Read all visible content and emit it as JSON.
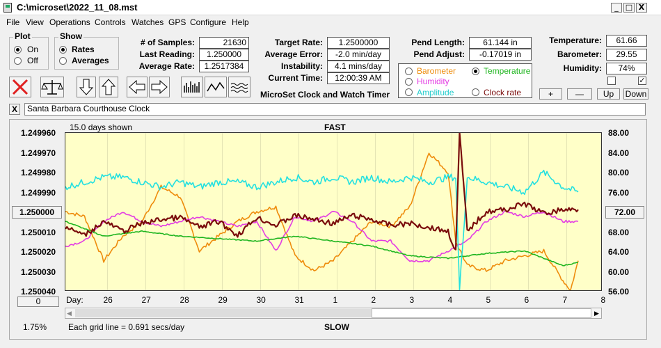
{
  "window": {
    "title": "C:\\microset\\2022_11_08.mst",
    "minimize": "_",
    "maximize": "□",
    "close": "X"
  },
  "menu": [
    "File",
    "View",
    "Operations",
    "Controls",
    "Watches",
    "GPS",
    "Configure",
    "Help"
  ],
  "plot_group": {
    "title": "Plot",
    "options": [
      "On",
      "Off"
    ],
    "selected": "On"
  },
  "show_group": {
    "title": "Show",
    "options": [
      "Rates",
      "Averages"
    ],
    "selected": "Rates"
  },
  "stats": {
    "samples_label": "# of Samples:",
    "samples": "21630",
    "last_label": "Last Reading:",
    "last": "1.250000",
    "avg_label": "Average Rate:",
    "avg": "1.2517384"
  },
  "rates": {
    "target_label": "Target Rate:",
    "target": "1.2500000",
    "avgerr_label": "Average Error:",
    "avgerr": "-2.0 min/day",
    "instab_label": "Instability:",
    "instab": "4.1 mins/day",
    "time_label": "Current Time:",
    "time": "12:00:39 AM"
  },
  "pend": {
    "length_label": "Pend Length:",
    "length": "61.144 in",
    "adjust_label": "Pend Adjust:",
    "adjust": "-0.17019 in"
  },
  "env": {
    "temp_label": "Temperature:",
    "temp": "61.66",
    "baro_label": "Barometer:",
    "baro": "29.55",
    "hum_label": "Humidity:",
    "hum": "74%",
    "check2": "✓"
  },
  "overlay_options": {
    "barometer": "Barometer",
    "temperature": "Temperature",
    "humidity": "Humidity",
    "amplitude": "Amplitude",
    "clock_rate": "Clock rate",
    "selected": "Temperature"
  },
  "adjust_buttons": [
    "+",
    "—",
    "Up",
    "Down"
  ],
  "subtitle": "MicroSet Clock and Watch Timer",
  "clock_name": "Santa Barbara Courthouse Clock",
  "clear_label": "X",
  "chart_header": {
    "days_shown": "15.0 days shown",
    "fast": "FAST",
    "slow": "SLOW",
    "grid_note": "Each grid line = 0.691 secs/day"
  },
  "left_box": "1.250000",
  "right_box": "72.00",
  "zero_button": "0",
  "percent": "1.75%",
  "day_label": "Day:",
  "colors": {
    "barometer": "#ee8c0c",
    "temperature": "#1fb51f",
    "humidity": "#e33be3",
    "amplitude": "#22e0e0",
    "clock_rate": "#7a0c0c",
    "plot_bg": "#ffffc8"
  },
  "chart_data": {
    "type": "line",
    "x_label": "Day",
    "x_ticks": [
      "26",
      "27",
      "28",
      "29",
      "30",
      "31",
      "1",
      "2",
      "3",
      "4",
      "5",
      "6",
      "7",
      "8"
    ],
    "y_left_ticks": [
      "1.249960",
      "1.249970",
      "1.249980",
      "1.249990",
      "1.250000",
      "1.250010",
      "1.250020",
      "1.250030",
      "1.250040"
    ],
    "y_right_ticks": [
      "88.00",
      "84.00",
      "80.00",
      "76.00",
      "72.00",
      "68.00",
      "64.00",
      "60.00",
      "56.00"
    ],
    "y_left_range": [
      1.24996,
      1.25004
    ],
    "y_right_range": [
      56,
      88
    ],
    "series": [
      {
        "name": "Clock rate",
        "color": "#7a0c0c",
        "axis": "left",
        "x": [
          0,
          0.5,
          1,
          1.5,
          2,
          2.5,
          3,
          3.5,
          4,
          4.5,
          5,
          5.5,
          6,
          6.5,
          7,
          7.5,
          8,
          8.5,
          9,
          9.5,
          10,
          10.2,
          10.3,
          10.5,
          11,
          11.5,
          12,
          12.5,
          13,
          13.4
        ],
        "y": [
          1.250008,
          1.250012,
          1.250005,
          1.25001,
          1.250006,
          1.250004,
          1.250003,
          1.250008,
          1.250005,
          1.250012,
          1.250003,
          1.250007,
          1.250002,
          1.250004,
          1.250006,
          1.250002,
          1.250004,
          1.250007,
          1.250006,
          1.250008,
          1.25001,
          1.25002,
          1.24996,
          1.25001,
          1.25,
          1.249999,
          1.249996,
          1.250001,
          1.249999,
          1.249999
        ]
      },
      {
        "name": "Temperature",
        "color": "#1fb51f",
        "axis": "right",
        "x": [
          0,
          1,
          2,
          3,
          4,
          5,
          6,
          7,
          8,
          9,
          10,
          11,
          12,
          13,
          13.4
        ],
        "y": [
          70,
          67,
          68,
          67,
          66.5,
          66,
          67,
          66,
          65,
          63,
          62.5,
          63.5,
          64,
          61,
          61.66
        ]
      },
      {
        "name": "Humidity",
        "color": "#e33be3",
        "axis": "right",
        "x": [
          0,
          0.5,
          1,
          1.5,
          2,
          2.5,
          3,
          3.5,
          4,
          4.5,
          5,
          5.5,
          6,
          6.5,
          7,
          7.5,
          8,
          8.5,
          9,
          9.5,
          10,
          10.5,
          11,
          11.5,
          12,
          12.5,
          13,
          13.4
        ],
        "y": [
          65,
          66,
          70,
          72,
          70,
          69,
          70,
          71,
          70,
          69,
          70,
          64,
          71,
          70,
          72,
          70,
          66,
          66,
          62,
          62,
          64,
          66,
          70,
          72,
          71,
          72,
          70,
          70
        ]
      },
      {
        "name": "Amplitude",
        "color": "#22e0e0",
        "axis": "right",
        "x": [
          0,
          0.5,
          1,
          1.5,
          2,
          2.5,
          3,
          3.5,
          4,
          4.5,
          5,
          5.5,
          6,
          6.5,
          7,
          7.5,
          8,
          8.5,
          9,
          9.5,
          10,
          10.2,
          10.3,
          10.5,
          11,
          11.5,
          12,
          12.5,
          13,
          13.4
        ],
        "y": [
          77,
          78,
          79,
          79,
          78,
          77,
          78,
          77,
          78,
          78,
          77,
          78,
          79,
          78,
          79,
          78,
          79,
          78,
          79,
          78,
          79,
          79,
          56,
          79,
          78,
          77,
          76,
          80,
          77,
          76
        ]
      },
      {
        "name": "Barometer",
        "color": "#ee8c0c",
        "axis": "right",
        "x": [
          0,
          0.5,
          1,
          1.5,
          2,
          2.5,
          3,
          3.5,
          4,
          4.5,
          5,
          5.5,
          6,
          6.5,
          7,
          7.5,
          8,
          8.5,
          9,
          9.5,
          10,
          10.2,
          10.5,
          11,
          11.5,
          12,
          12.5,
          13,
          13.2,
          13.4
        ],
        "y": [
          72,
          71,
          62,
          67,
          70,
          77,
          75,
          64,
          67,
          70,
          72,
          73,
          63,
          60,
          62,
          66,
          70,
          69,
          73,
          84,
          80,
          66,
          61,
          60,
          62,
          63,
          64,
          58,
          56,
          62
        ]
      }
    ]
  }
}
